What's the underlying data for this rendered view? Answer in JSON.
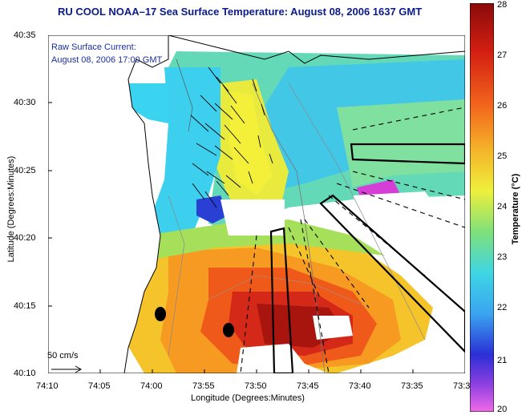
{
  "title": "RU COOL  NOAA–17  Sea Surface Temperature:  August 08, 2006 1637 GMT",
  "overlay": {
    "line1": "Raw Surface Current:",
    "line2": "August 08, 2006 17:00 GMT",
    "scale": "50 cm/s"
  },
  "axes": {
    "xlabel": "Longitude (Degrees:Minutes)",
    "ylabel": "Latitude (Degrees:Minutes)",
    "xticks": [
      "74:10",
      "74:05",
      "74:00",
      "73:55",
      "73:50",
      "73:45",
      "73:40",
      "73:35",
      "73:3"
    ],
    "yticks": [
      "40:35",
      "40:30",
      "40:25",
      "40:20",
      "40:15",
      "40:10"
    ]
  },
  "colorbar": {
    "label": "Temperature (°C)",
    "ticks": [
      "28",
      "27",
      "26",
      "25",
      "24",
      "23",
      "22",
      "21",
      "20"
    ],
    "min": 20,
    "max": 28
  },
  "colors": {
    "title": "#0a1a8a",
    "overlay_text": "#1a2fa0",
    "land": "#ffffff"
  }
}
